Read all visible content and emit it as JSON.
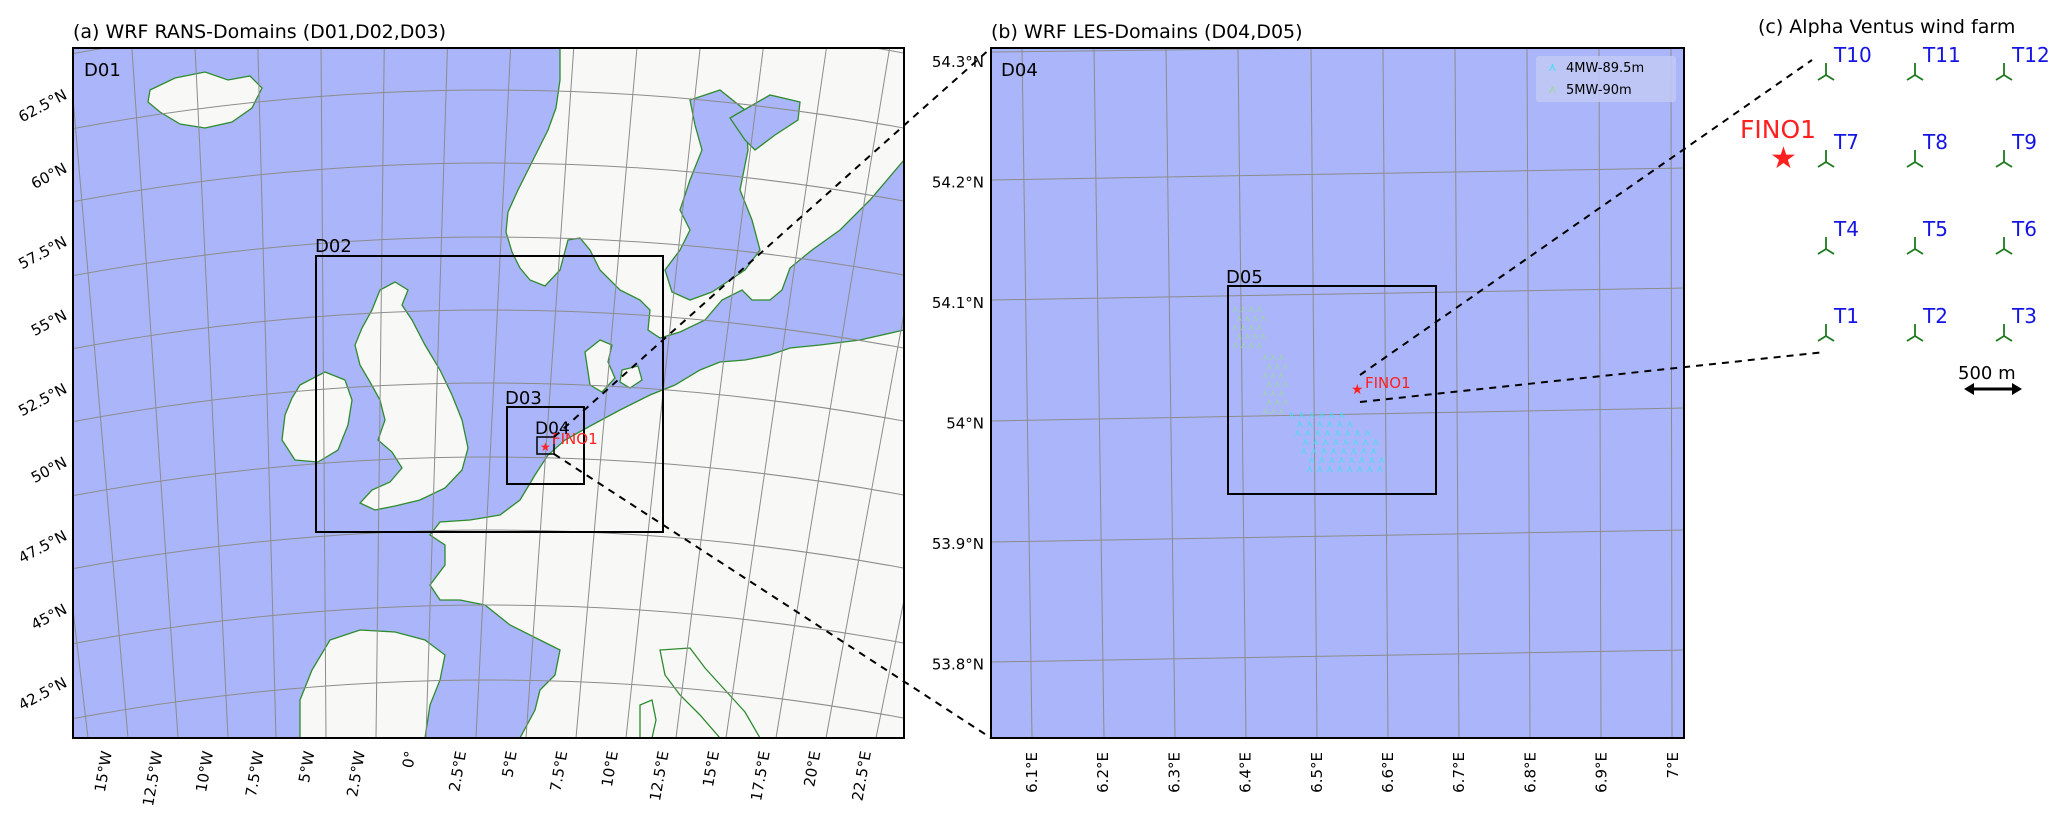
{
  "panel_a": {
    "title": "(a) WRF RANS-Domains (D01,D02,D03)",
    "labels": {
      "d01": "D01",
      "d02": "D02",
      "d03": "D03",
      "d04": "D04",
      "fino": "FINO1"
    },
    "lat_labels": [
      "62.5°N",
      "60°N",
      "57.5°N",
      "55°N",
      "52.5°N",
      "50°N",
      "47.5°N",
      "45°N",
      "42.5°N"
    ],
    "lon_labels": [
      "15°W",
      "12.5°W",
      "10°W",
      "7.5°W",
      "5°W",
      "2.5°W",
      "0°",
      "2.5°E",
      "5°E",
      "7.5°E",
      "10°E",
      "12.5°E",
      "15°E",
      "17.5°E",
      "20°E",
      "22.5°E"
    ]
  },
  "panel_b": {
    "title": "(b) WRF LES-Domains (D04,D05)",
    "labels": {
      "d04": "D04",
      "d05": "D05",
      "fino": "FINO1"
    },
    "legend": [
      "4MW-89.5m",
      "5MW-90m"
    ],
    "lat_labels": [
      "54.3°N",
      "54.2°N",
      "54.1°N",
      "54°N",
      "53.9°N",
      "53.8°N"
    ],
    "lon_labels": [
      "6.1°E",
      "6.2°E",
      "6.3°E",
      "6.4°E",
      "6.5°E",
      "6.6°E",
      "6.7°E",
      "6.8°E",
      "6.9°E",
      "7°E"
    ]
  },
  "panel_c": {
    "title": "(c) Alpha Ventus wind farm",
    "fino": "FINO1",
    "turbines": [
      [
        "T10",
        "T11",
        "T12"
      ],
      [
        "T7",
        "T8",
        "T9"
      ],
      [
        "T4",
        "T5",
        "T6"
      ],
      [
        "T1",
        "T2",
        "T3"
      ]
    ],
    "scale": "500 m"
  },
  "colors": {
    "sea": "#aab6f9",
    "land": "#f8f8f6",
    "coast": "#2e8b2e",
    "grid": "#8c8c8c",
    "fino": "#ff2020",
    "turbine_label": "#1414e6",
    "turbine_icon": "#1e7a1e",
    "legend_4mw": "#3fe0f5",
    "legend_5mw": "#9bd89b"
  }
}
